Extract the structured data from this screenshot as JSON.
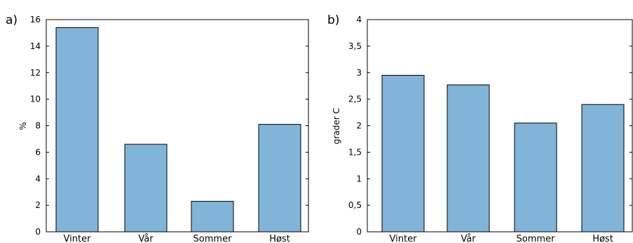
{
  "chart_data": [
    {
      "panel_label": "a)",
      "type": "bar",
      "categories": [
        "Vinter",
        "Vår",
        "Sommer",
        "Høst"
      ],
      "values": [
        15.4,
        6.6,
        2.3,
        8.1
      ],
      "xlabel": "",
      "ylabel": "%",
      "ylim": [
        0,
        16
      ],
      "yticks": [
        0,
        2,
        4,
        6,
        8,
        10,
        12,
        14,
        16
      ],
      "ytick_labels": [
        "0",
        "2",
        "4",
        "6",
        "8",
        "10",
        "12",
        "14",
        "16"
      ],
      "bar_color": "#80b4d8",
      "grid": false
    },
    {
      "panel_label": "b)",
      "type": "bar",
      "categories": [
        "Vinter",
        "Vår",
        "Sommer",
        "Høst"
      ],
      "values": [
        2.95,
        2.77,
        2.05,
        2.4
      ],
      "xlabel": "",
      "ylabel": "grader C",
      "ylim": [
        0,
        4
      ],
      "yticks": [
        0,
        0.5,
        1,
        1.5,
        2,
        2.5,
        3,
        3.5,
        4
      ],
      "ytick_labels": [
        "0",
        "0,5",
        "1",
        "1,5",
        "2",
        "2,5",
        "3",
        "3,5",
        "4"
      ],
      "bar_color": "#80b4d8",
      "grid": false
    }
  ]
}
